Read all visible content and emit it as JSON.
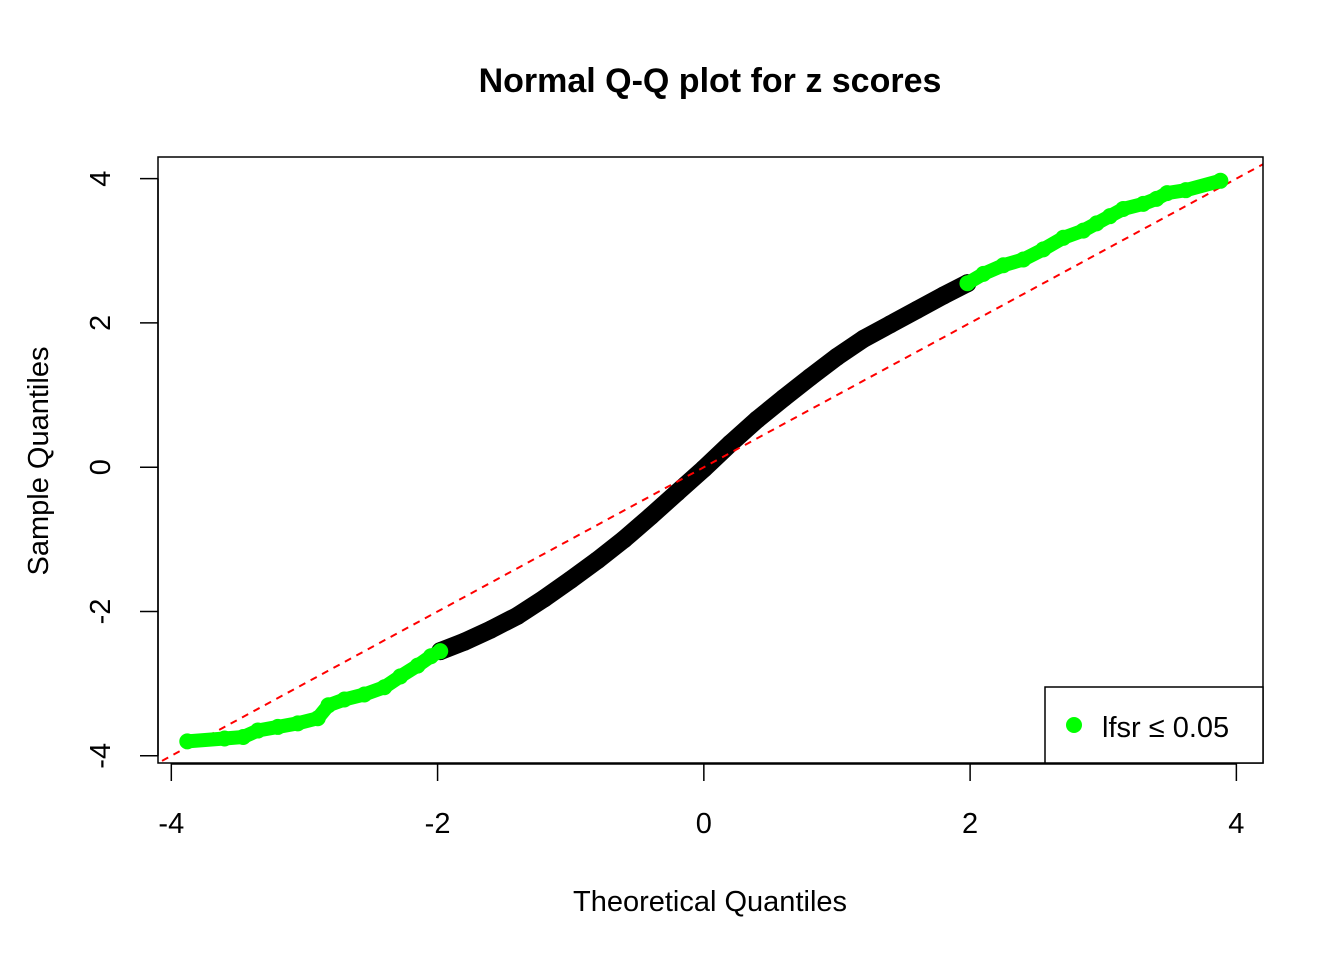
{
  "chart_data": {
    "type": "scatter",
    "title": "Normal Q-Q plot for z scores",
    "xlabel": "Theoretical Quantiles",
    "ylabel": "Sample Quantiles",
    "xlim": [
      -4.1,
      4.2
    ],
    "ylim": [
      -4.1,
      4.3
    ],
    "x_ticks": [
      -4,
      -2,
      0,
      2,
      4
    ],
    "y_ticks": [
      -4,
      -2,
      0,
      2,
      4
    ],
    "x_tick_labels": [
      "-4",
      "-2",
      "0",
      "2",
      "4"
    ],
    "y_tick_labels": [
      "-4",
      "-2",
      "0",
      "2",
      "4"
    ],
    "reference_line": {
      "intercept": 0.0,
      "slope": 1.0,
      "style": "dashed",
      "color": "#ff0000"
    },
    "legend": {
      "position": "bottom-right",
      "entries": [
        {
          "label": "lfsr ≤ 0.05",
          "color": "#00ff00"
        }
      ]
    },
    "series": [
      {
        "color": "#000000",
        "marker": "circle",
        "points": [
          [
            -1.98,
            -2.55
          ],
          [
            -1.8,
            -2.42
          ],
          [
            -1.6,
            -2.25
          ],
          [
            -1.4,
            -2.06
          ],
          [
            -1.2,
            -1.82
          ],
          [
            -1.0,
            -1.56
          ],
          [
            -0.8,
            -1.29
          ],
          [
            -0.6,
            -1.0
          ],
          [
            -0.4,
            -0.68
          ],
          [
            -0.2,
            -0.35
          ],
          [
            0.0,
            -0.02
          ],
          [
            0.2,
            0.33
          ],
          [
            0.4,
            0.66
          ],
          [
            0.6,
            0.96
          ],
          [
            0.8,
            1.25
          ],
          [
            1.0,
            1.53
          ],
          [
            1.2,
            1.78
          ],
          [
            1.4,
            1.98
          ],
          [
            1.6,
            2.18
          ],
          [
            1.8,
            2.38
          ],
          [
            1.98,
            2.55
          ]
        ]
      },
      {
        "color": "#00ff00",
        "marker": "circle",
        "points": [
          [
            -3.88,
            -3.8
          ],
          [
            -3.6,
            -3.76
          ],
          [
            -3.46,
            -3.74
          ],
          [
            -3.35,
            -3.65
          ],
          [
            -3.2,
            -3.6
          ],
          [
            -3.05,
            -3.55
          ],
          [
            -2.9,
            -3.48
          ],
          [
            -2.82,
            -3.3
          ],
          [
            -2.7,
            -3.22
          ],
          [
            -2.55,
            -3.15
          ],
          [
            -2.4,
            -3.05
          ],
          [
            -2.28,
            -2.9
          ],
          [
            -2.15,
            -2.75
          ],
          [
            -2.05,
            -2.62
          ],
          [
            -1.98,
            -2.55
          ],
          [
            1.98,
            2.55
          ],
          [
            2.1,
            2.68
          ],
          [
            2.25,
            2.8
          ],
          [
            2.4,
            2.88
          ],
          [
            2.55,
            3.02
          ],
          [
            2.7,
            3.18
          ],
          [
            2.85,
            3.28
          ],
          [
            2.95,
            3.38
          ],
          [
            3.05,
            3.48
          ],
          [
            3.15,
            3.58
          ],
          [
            3.3,
            3.65
          ],
          [
            3.4,
            3.72
          ],
          [
            3.48,
            3.8
          ],
          [
            3.62,
            3.84
          ],
          [
            3.88,
            3.97
          ]
        ]
      }
    ]
  }
}
